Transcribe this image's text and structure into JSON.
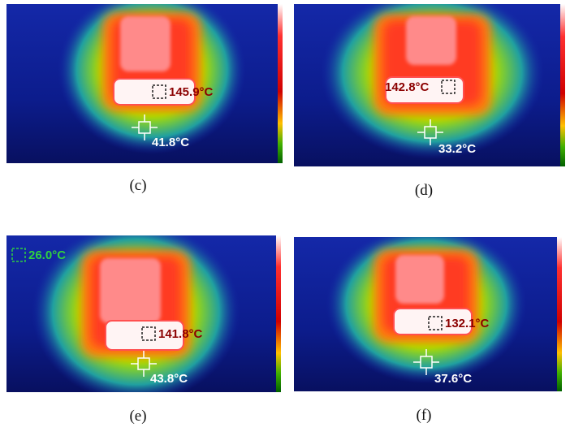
{
  "panels": [
    {
      "caption": "(c)",
      "readings": [
        "145.9°C",
        "41.8°C"
      ]
    },
    {
      "caption": "(d)",
      "readings": [
        "142.8°C",
        "33.2°C"
      ]
    },
    {
      "caption": "(e)",
      "readings": [
        "26.0°C",
        "141.8°C",
        "43.8°C"
      ]
    },
    {
      "caption": "(f)",
      "readings": [
        "132.1°C",
        "37.6°C"
      ]
    }
  ]
}
